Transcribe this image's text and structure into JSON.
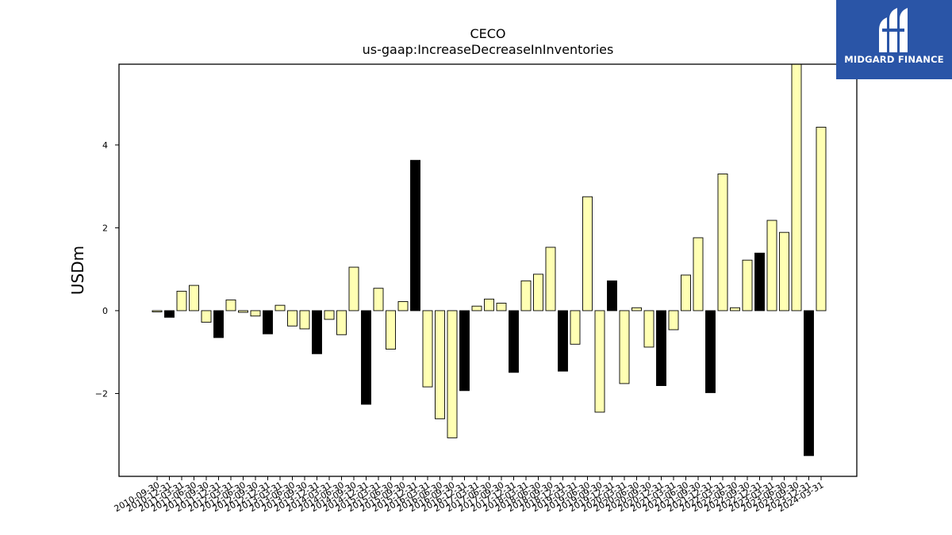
{
  "logo": {
    "brand_text": "MIDGARD FINANCE",
    "background": "#2a55a7",
    "icon": "midgard-mark-icon"
  },
  "chart_data": {
    "type": "bar",
    "title": "CECO",
    "subtitle": "us-gaap:IncreaseDecreaseInInventories",
    "xlabel": "",
    "ylabel": "USDm",
    "ylim": [
      -4.0,
      5.95
    ],
    "yticks": [
      -2,
      0,
      2,
      4
    ],
    "ytick_labels": [
      "−2",
      "0",
      "2",
      "4"
    ],
    "grid": false,
    "legend": "none",
    "colors": {
      "quarter": "#ffffb3",
      "year_end": "#000000",
      "edge": "#000000"
    },
    "categories": [
      "2010-09-30",
      "2010-12-31",
      "2011-03-31",
      "2011-06-30",
      "2011-09-30",
      "2011-12-31",
      "2012-03-31",
      "2012-06-30",
      "2012-09-30",
      "2012-12-31",
      "2013-03-31",
      "2013-06-30",
      "2013-09-30",
      "2013-12-31",
      "2014-03-31",
      "2014-06-30",
      "2014-09-30",
      "2014-12-31",
      "2015-03-31",
      "2015-06-30",
      "2015-09-30",
      "2015-12-31",
      "2016-03-31",
      "2016-06-30",
      "2016-09-30",
      "2016-12-31",
      "2017-03-31",
      "2017-06-30",
      "2017-09-30",
      "2017-12-31",
      "2018-03-31",
      "2018-06-30",
      "2018-09-30",
      "2018-12-31",
      "2019-03-31",
      "2019-06-30",
      "2019-09-30",
      "2019-12-31",
      "2020-03-31",
      "2020-06-30",
      "2020-09-30",
      "2020-12-31",
      "2021-03-31",
      "2021-06-30",
      "2021-09-30",
      "2021-12-31",
      "2022-03-31",
      "2022-06-30",
      "2022-09-30",
      "2022-12-31",
      "2023-03-31",
      "2023-06-30",
      "2023-09-30",
      "2023-12-31",
      "2024-03-31"
    ],
    "values": [
      -0.03,
      -0.16,
      0.47,
      0.61,
      -0.28,
      -0.65,
      0.26,
      -0.04,
      -0.13,
      -0.56,
      0.13,
      -0.37,
      -0.44,
      -1.04,
      -0.21,
      -0.58,
      1.05,
      -2.26,
      0.54,
      -0.93,
      0.22,
      3.63,
      -1.84,
      -2.61,
      -3.07,
      -1.93,
      0.11,
      0.28,
      0.18,
      -1.49,
      0.72,
      0.88,
      1.53,
      -1.46,
      -0.81,
      2.75,
      -2.45,
      0.72,
      -1.76,
      0.07,
      -0.88,
      -1.81,
      -0.46,
      0.86,
      1.76,
      -1.98,
      3.3,
      0.07,
      1.22,
      1.39,
      2.18,
      1.89,
      5.95,
      -3.5,
      4.43
    ],
    "year_end": [
      false,
      true,
      false,
      false,
      false,
      true,
      false,
      false,
      false,
      true,
      false,
      false,
      false,
      true,
      false,
      false,
      false,
      true,
      false,
      false,
      false,
      true,
      false,
      false,
      false,
      true,
      false,
      false,
      false,
      true,
      false,
      false,
      false,
      true,
      false,
      false,
      false,
      true,
      false,
      false,
      false,
      true,
      false,
      false,
      false,
      true,
      false,
      false,
      false,
      true,
      false,
      false,
      false,
      true,
      false
    ]
  }
}
